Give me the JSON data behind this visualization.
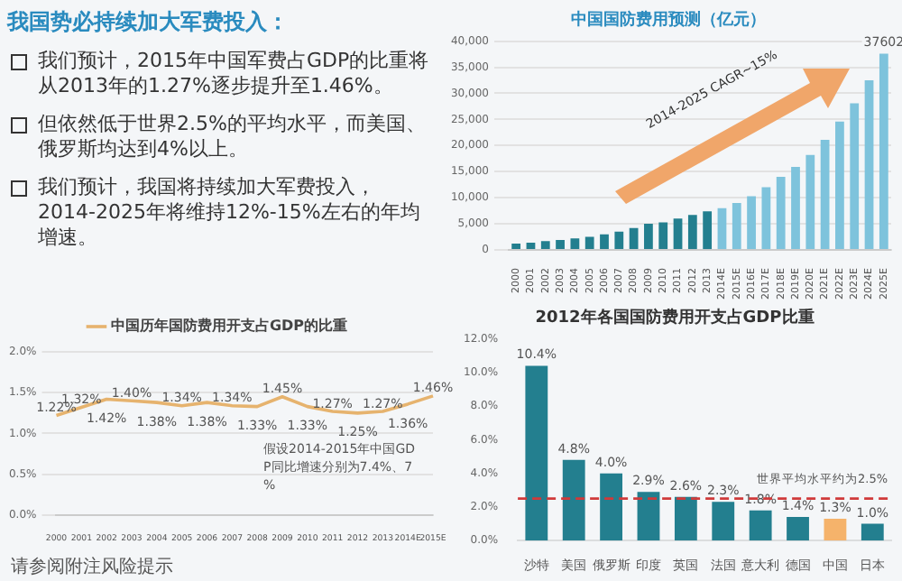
{
  "chart_data": [
    {
      "type": "other",
      "title": "我国势必持续加大军费投入：",
      "annotations": [
        "我们预计，2015年中国军费占GDP的比重将从2013年的1.27%逐步提升至1.46%。",
        "但依然低于世界2.5%的平均水平，而美国、俄罗斯均达到4%以上。",
        "我们预计，我国将持续加大军费投入，2014-2025年将维持12%-15%左右的年均增速。"
      ]
    },
    {
      "type": "bar",
      "title": "中国国防费用预测（亿元）",
      "categories": [
        "2000",
        "2001",
        "2002",
        "2003",
        "2004",
        "2005",
        "2006",
        "2007",
        "2008",
        "2009",
        "2010",
        "2011",
        "2012",
        "2013",
        "2014E",
        "2015E",
        "2016E",
        "2017E",
        "2018E",
        "2019E",
        "2020E",
        "2021E",
        "2022E",
        "2023E",
        "2024E",
        "2025E"
      ],
      "series": [
        {
          "colors": [
            "#237f8f",
            "#237f8f",
            "#237f8f",
            "#237f8f",
            "#237f8f",
            "#237f8f",
            "#237f8f",
            "#237f8f",
            "#237f8f",
            "#237f8f",
            "#237f8f",
            "#237f8f",
            "#237f8f",
            "#237f8f",
            "#7ec3dc",
            "#7ec3dc",
            "#7ec3dc",
            "#7ec3dc",
            "#7ec3dc",
            "#7ec3dc",
            "#7ec3dc",
            "#7ec3dc",
            "#7ec3dc",
            "#7ec3dc",
            "#7ec3dc",
            "#7ec3dc"
          ],
          "values": [
            1200,
            1400,
            1700,
            1900,
            2200,
            2500,
            3000,
            3500,
            4200,
            5000,
            5300,
            6000,
            6700,
            7400,
            8000,
            9000,
            10300,
            12000,
            14000,
            15900,
            18200,
            21100,
            24600,
            28100,
            32500,
            37602
          ],
          "value_labels": [
            null,
            null,
            null,
            null,
            null,
            null,
            null,
            null,
            null,
            null,
            null,
            null,
            null,
            null,
            null,
            null,
            null,
            null,
            null,
            null,
            null,
            null,
            null,
            null,
            null,
            "37602"
          ]
        }
      ],
      "ylim": [
        0,
        40000
      ],
      "yticks": [
        0,
        {
          "value": 5000,
          "label": "5,000"
        },
        {
          "value": 10000,
          "label": "10,000"
        },
        {
          "value": 15000,
          "label": "15,000"
        },
        {
          "value": 20000,
          "label": "20,000"
        },
        {
          "value": 25000,
          "label": "25,000"
        },
        {
          "value": 30000,
          "label": "30,000"
        },
        {
          "value": 35000,
          "label": "35,000"
        },
        {
          "value": 40000,
          "label": "40,000"
        }
      ],
      "grid": "y",
      "annotations": [
        "2014-2025 CAGR~15%"
      ]
    },
    {
      "type": "line",
      "categories": [
        "2000",
        "2001",
        "2002",
        "2003",
        "2004",
        "2005",
        "2006",
        "2007",
        "2008",
        "2009",
        "2010",
        "2011",
        "2012",
        "2013",
        "2014E",
        "2015E"
      ],
      "series": [
        {
          "name": "中国历年国防费用开支占GDP的比重",
          "color": "#e6b36e",
          "values": [
            1.22,
            1.32,
            1.42,
            1.4,
            1.38,
            1.34,
            1.38,
            1.34,
            1.33,
            1.45,
            1.33,
            1.27,
            1.25,
            1.27,
            1.36,
            1.46
          ],
          "value_labels": [
            "1.22%",
            "1.32%",
            "1.42%",
            "1.40%",
            "1.38%",
            "1.34%",
            "1.38%",
            "1.34%",
            "1.33%",
            "1.45%",
            "1.33%",
            "1.27%",
            "1.25%",
            "1.27%",
            "1.36%",
            "1.46%"
          ]
        }
      ],
      "ylim": [
        0,
        2
      ],
      "yticks": [
        {
          "value": 0,
          "label": "0.0%"
        },
        {
          "value": 0.5,
          "label": "0.5%"
        },
        {
          "value": 1,
          "label": "1.0%"
        },
        {
          "value": 1.5,
          "label": "1.5%"
        },
        {
          "value": 2,
          "label": "2.0%"
        }
      ],
      "grid": "y",
      "legend": "top",
      "marker": "none",
      "annotations": [
        "假设2014-2015年中国GDP同比增速分别为7.4%、7%",
        "请参阅附注风险提示"
      ]
    },
    {
      "type": "bar",
      "title": "2012年各国国防费用开支占GDP比重",
      "categories": [
        "沙特",
        "美国",
        "俄罗斯",
        "印度",
        "英国",
        "法国",
        "意大利",
        "德国",
        "中国",
        "日本"
      ],
      "series": [
        {
          "colors": [
            "#237f8f",
            "#237f8f",
            "#237f8f",
            "#237f8f",
            "#237f8f",
            "#237f8f",
            "#237f8f",
            "#237f8f",
            "#f5b36b",
            "#237f8f"
          ],
          "values": [
            10.4,
            4.8,
            4.0,
            2.9,
            2.6,
            2.3,
            1.8,
            1.4,
            1.3,
            1.0
          ],
          "value_labels": [
            "10.4%",
            "4.8%",
            "4.0%",
            "2.9%",
            "2.6%",
            "2.3%",
            "1.8%",
            "1.4%",
            "1.3%",
            "1.0%"
          ]
        }
      ],
      "ylim": [
        0,
        12
      ],
      "yticks": [
        {
          "value": 0,
          "label": "0.0%"
        },
        {
          "value": 2,
          "label": "2.0%"
        },
        {
          "value": 4,
          "label": "4.0%"
        },
        {
          "value": 6,
          "label": "6.0%"
        },
        {
          "value": 8,
          "label": "8.0%"
        },
        {
          "value": 10,
          "label": "10.0%"
        },
        {
          "value": 12,
          "label": "12.0%"
        }
      ],
      "ref_lines": [
        {
          "axis": "y",
          "value": 2.5,
          "label": "世界平均水平约为2.5%",
          "color": "#d03a3a",
          "line_style": "dashed"
        }
      ]
    }
  ]
}
